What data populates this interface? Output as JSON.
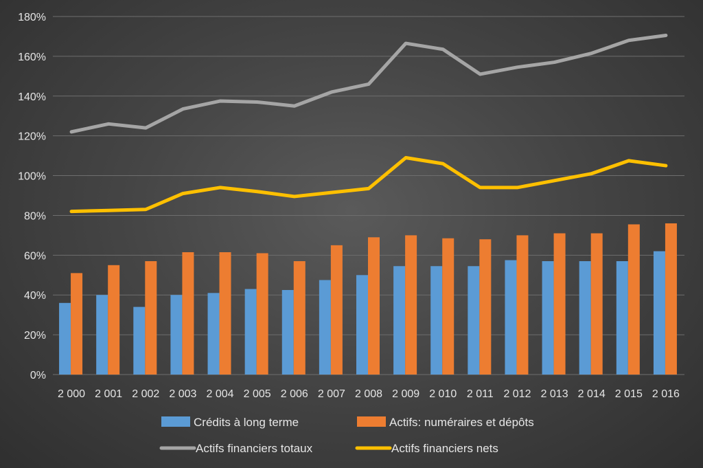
{
  "chart_data": {
    "type": "bar",
    "categories": [
      "2 000",
      "2 001",
      "2 002",
      "2 003",
      "2 004",
      "2 005",
      "2 006",
      "2 007",
      "2 008",
      "2 009",
      "2 010",
      "2 011",
      "2 012",
      "2 013",
      "2 014",
      "2 015",
      "2 016"
    ],
    "ylim": [
      0,
      180
    ],
    "y_ticks": [
      0,
      20,
      40,
      60,
      80,
      100,
      120,
      140,
      160,
      180
    ],
    "y_tick_format": "%",
    "grid": true,
    "legend_position": "bottom",
    "series": [
      {
        "name": "Crédits à long terme",
        "type": "bar",
        "color": "#5b9bd5",
        "values": [
          36,
          40,
          34,
          40,
          41,
          43,
          42.5,
          47.5,
          50,
          54.5,
          54.5,
          54.5,
          57.5,
          57,
          57,
          57,
          62
        ]
      },
      {
        "name": "Actifs: numéraires et dépôts",
        "type": "bar",
        "color": "#ed7d31",
        "values": [
          51,
          55,
          57,
          61.5,
          61.5,
          61,
          57,
          65,
          69,
          70,
          68.5,
          68,
          70,
          71,
          71,
          75.5,
          76
        ]
      },
      {
        "name": "Actifs financiers totaux",
        "type": "line",
        "color": "#a5a5a5",
        "values": [
          122,
          126,
          124,
          133.5,
          137.5,
          137,
          135,
          142,
          146,
          166.5,
          163.5,
          151,
          154.5,
          157,
          161.5,
          168,
          170.5
        ]
      },
      {
        "name": "Actifs financiers nets",
        "type": "line",
        "color": "#ffc000",
        "values": [
          82,
          82.5,
          83,
          91,
          94,
          92,
          89.5,
          91.5,
          93.5,
          109,
          106,
          94,
          94,
          97.5,
          101,
          107.5,
          105
        ]
      }
    ]
  }
}
